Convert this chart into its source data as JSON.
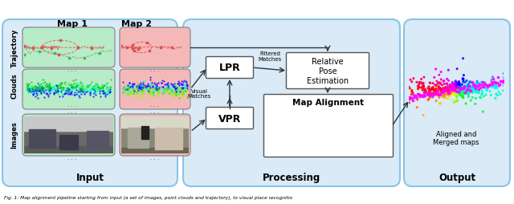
{
  "title": "Fig. 1: Map alignment pipeline starting from input (a set of images, point clouds and trajectory), to visual place recognitio",
  "bg_color": "#ffffff",
  "input_box_color": "#daeaf7",
  "processing_box_color": "#daeaf7",
  "output_box_color": "#daeaf7",
  "map1_color": "#b8ebc8",
  "map2_color": "#f5b8b8",
  "section_labels": [
    "Input",
    "Processing",
    "Output"
  ],
  "map_labels": [
    "Map 1",
    "Map 2"
  ],
  "row_labels": [
    "Trajectory",
    "Clouds",
    "Images"
  ],
  "lpr_label": "LPR",
  "vpr_label": "VPR",
  "pose_label": "Relative\nPose\nEstimation",
  "alignment_label": "Map Alignment",
  "filtered_label": "Filtered\nMatches",
  "visual_label": "Visual\nMatches",
  "output_label": "Aligned and\nMerged maps"
}
